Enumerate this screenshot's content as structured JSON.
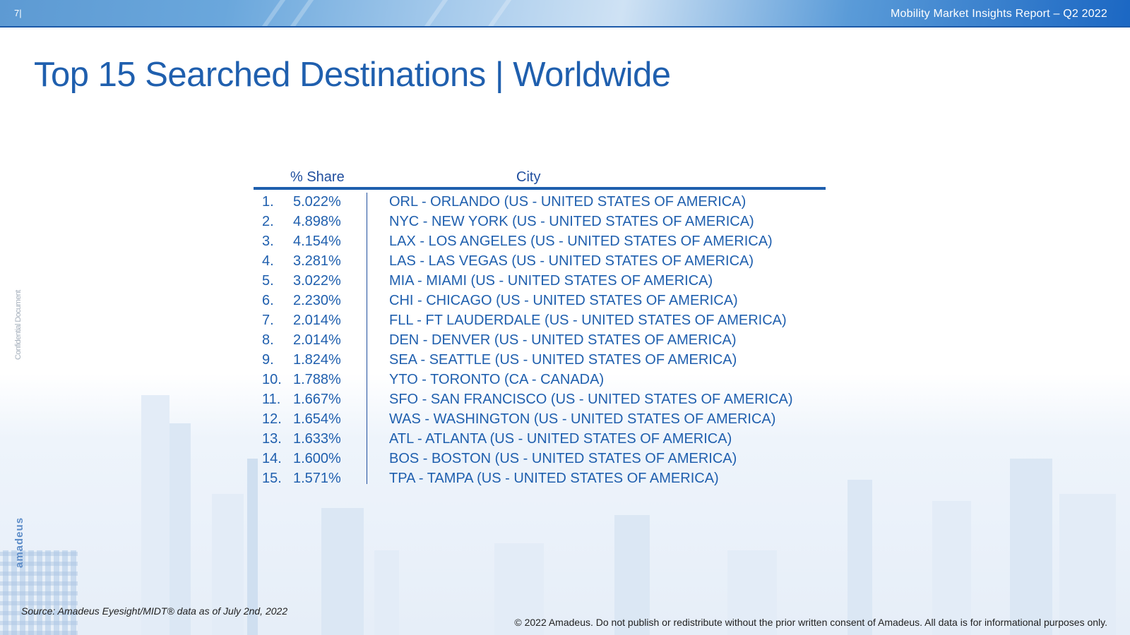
{
  "header": {
    "page_number": "7|",
    "report_title": "Mobility Market Insights Report – Q2 2022"
  },
  "page_title": "Top 15 Searched Destinations | Worldwide",
  "table": {
    "columns": {
      "share": "% Share",
      "city": "City"
    },
    "rows": [
      {
        "rank": "1.",
        "share": "5.022%",
        "city": "ORL - ORLANDO (US - UNITED STATES OF AMERICA)"
      },
      {
        "rank": "2.",
        "share": "4.898%",
        "city": "NYC - NEW YORK (US - UNITED STATES OF AMERICA)"
      },
      {
        "rank": "3.",
        "share": "4.154%",
        "city": "LAX - LOS ANGELES (US - UNITED STATES OF AMERICA)"
      },
      {
        "rank": "4.",
        "share": "3.281%",
        "city": "LAS - LAS VEGAS (US - UNITED STATES OF AMERICA)"
      },
      {
        "rank": "5.",
        "share": "3.022%",
        "city": "MIA - MIAMI (US - UNITED STATES OF AMERICA)"
      },
      {
        "rank": "6.",
        "share": "2.230%",
        "city": "CHI - CHICAGO (US - UNITED STATES OF AMERICA)"
      },
      {
        "rank": "7.",
        "share": "2.014%",
        "city": "FLL - FT LAUDERDALE (US - UNITED STATES OF AMERICA)"
      },
      {
        "rank": "8.",
        "share": "2.014%",
        "city": "DEN - DENVER (US - UNITED STATES OF AMERICA)"
      },
      {
        "rank": "9.",
        "share": "1.824%",
        "city": "SEA - SEATTLE (US - UNITED STATES OF AMERICA)"
      },
      {
        "rank": "10.",
        "share": "1.788%",
        "city": "YTO - TORONTO (CA - CANADA)"
      },
      {
        "rank": "11.",
        "share": "1.667%",
        "city": "SFO - SAN FRANCISCO (US - UNITED STATES OF AMERICA)"
      },
      {
        "rank": "12.",
        "share": "1.654%",
        "city": "WAS - WASHINGTON (US - UNITED STATES OF AMERICA)"
      },
      {
        "rank": "13.",
        "share": "1.633%",
        "city": "ATL - ATLANTA (US - UNITED STATES OF AMERICA)"
      },
      {
        "rank": "14.",
        "share": "1.600%",
        "city": "BOS - BOSTON (US - UNITED STATES OF AMERICA)"
      },
      {
        "rank": "15.",
        "share": "1.571%",
        "city": "TPA - TAMPA (US - UNITED STATES OF AMERICA)"
      }
    ]
  },
  "side_label": "Confidential Document",
  "side_logo": "amadeus",
  "source_note": "Source: Amadeus Eyesight/MIDT® data as of July 2nd, 2022",
  "copyright": "© 2022 Amadeus. Do not publish or redistribute without the prior written consent of Amadeus. All data is for informational purposes only.",
  "colors": {
    "accent": "#1f5fae",
    "header_dark": "#1b67c3",
    "rule": "#1e5fae"
  }
}
